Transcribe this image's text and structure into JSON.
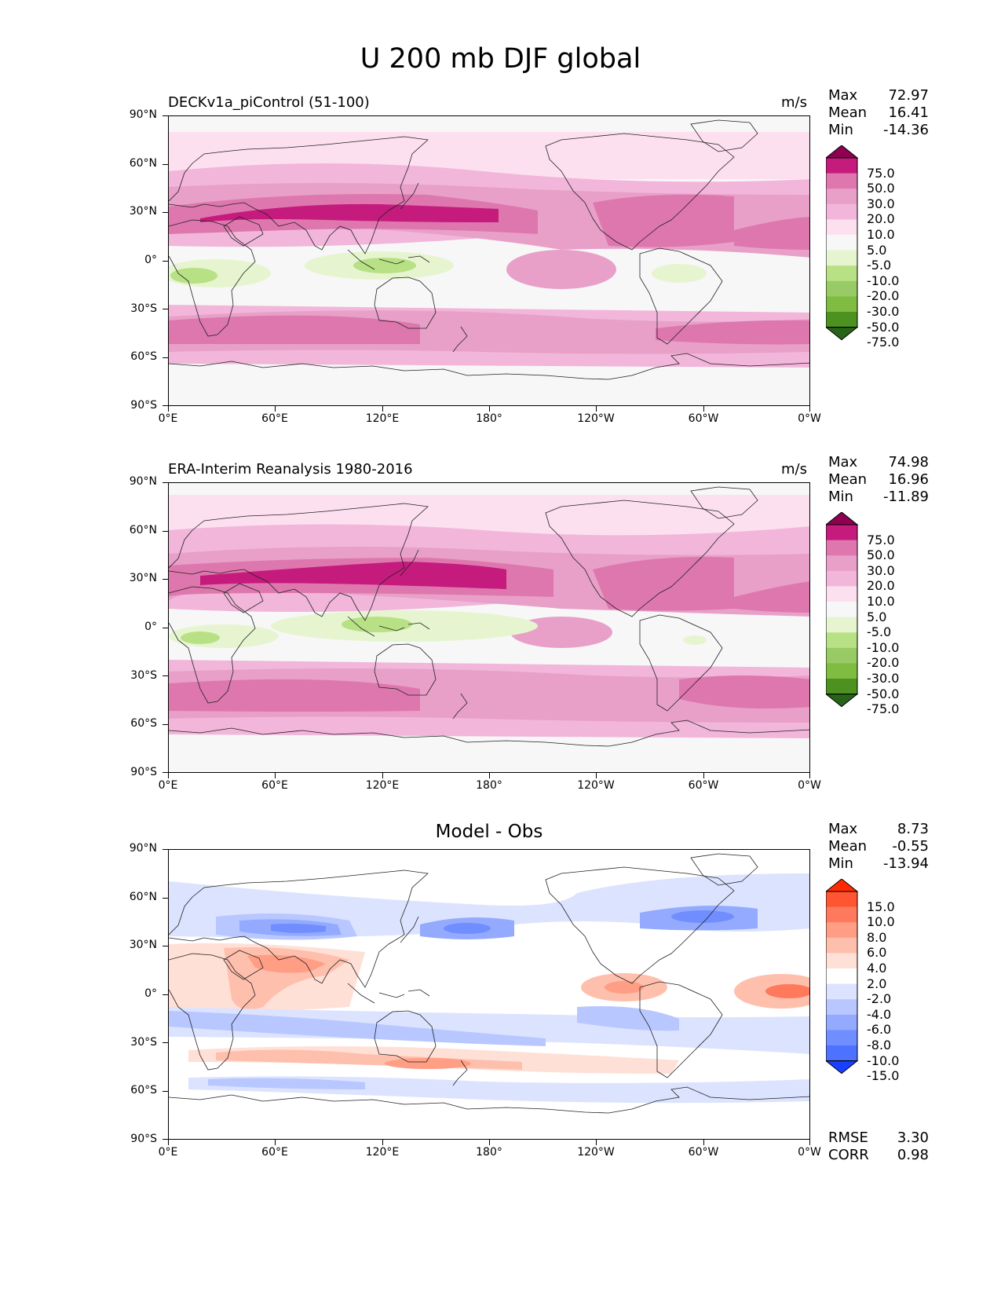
{
  "figure": {
    "title": "U 200 mb DJF global"
  },
  "axes": {
    "y_ticks": [
      "90°N",
      "60°N",
      "30°N",
      "0°",
      "30°S",
      "60°S",
      "90°S"
    ],
    "x_ticks": [
      "0°E",
      "60°E",
      "120°E",
      "180°",
      "120°W",
      "60°W",
      "0°W"
    ]
  },
  "panels": [
    {
      "title": "DECKv1a_piControl (51-100)",
      "units": "m/s",
      "stats": {
        "max_label": "Max",
        "max": "72.97",
        "mean_label": "Mean",
        "mean": "16.41",
        "min_label": "Min",
        "min": "-14.36"
      },
      "colorbar": {
        "labels": [
          "75.0",
          "50.0",
          "30.0",
          "20.0",
          "10.0",
          "5.0",
          "-5.0",
          "-10.0",
          "-20.0",
          "-30.0",
          "-50.0",
          "-75.0"
        ],
        "colors": [
          "#8e0152",
          "#c51b7d",
          "#de77ae",
          "#e8a0c8",
          "#f1b6da",
          "#fde0ef",
          "#f7f7f7",
          "#e6f5d0",
          "#b8e186",
          "#98cb65",
          "#7fbc41",
          "#4d9221",
          "#276419"
        ]
      }
    },
    {
      "title": "ERA-Interim Reanalysis 1980-2016",
      "units": "m/s",
      "stats": {
        "max_label": "Max",
        "max": "74.98",
        "mean_label": "Mean",
        "mean": "16.96",
        "min_label": "Min",
        "min": "-11.89"
      },
      "colorbar": {
        "labels": [
          "75.0",
          "50.0",
          "30.0",
          "20.0",
          "10.0",
          "5.0",
          "-5.0",
          "-10.0",
          "-20.0",
          "-30.0",
          "-50.0",
          "-75.0"
        ],
        "colors": [
          "#8e0152",
          "#c51b7d",
          "#de77ae",
          "#e8a0c8",
          "#f1b6da",
          "#fde0ef",
          "#f7f7f7",
          "#e6f5d0",
          "#b8e186",
          "#98cb65",
          "#7fbc41",
          "#4d9221",
          "#276419"
        ]
      }
    },
    {
      "title": "Model - Obs",
      "stats": {
        "max_label": "Max",
        "max": "8.73",
        "mean_label": "Mean",
        "mean": "-0.55",
        "min_label": "Min",
        "min": "-13.94"
      },
      "colorbar": {
        "labels": [
          "15.0",
          "10.0",
          "8.0",
          "6.0",
          "4.0",
          "2.0",
          "-2.0",
          "-4.0",
          "-6.0",
          "-8.0",
          "-10.0",
          "-15.0"
        ],
        "colors": [
          "#ff2a00",
          "#ff5533",
          "#ff7a5c",
          "#ff9e85",
          "#ffbfad",
          "#ffe0d6",
          "#ffffff",
          "#dbe3ff",
          "#b8c7ff",
          "#94aaff",
          "#708eff",
          "#4d72ff",
          "#1a40ff"
        ]
      },
      "metrics": {
        "rmse_label": "RMSE",
        "rmse": "3.30",
        "corr_label": "CORR",
        "corr": "0.98"
      }
    }
  ],
  "chart_data": {
    "type": "heatmap",
    "title": "U 200 mb DJF global",
    "xlim": [
      0,
      360
    ],
    "ylim": [
      -90,
      90
    ],
    "panels": [
      {
        "title": "DECKv1a_piControl (51-100)",
        "units": "m/s",
        "levels": [
          -75,
          -50,
          -30,
          -20,
          -10,
          -5,
          5,
          10,
          20,
          30,
          50,
          75
        ],
        "max": 72.97,
        "mean": 16.41,
        "min": -14.36,
        "features": [
          {
            "name": "NH subtropical jet Asia/W Pacific",
            "lon": 145,
            "lat": 32,
            "value": 70
          },
          {
            "name": "NH jet N America/Atlantic",
            "lon": 290,
            "lat": 35,
            "value": 45
          },
          {
            "name": "SH westerlies",
            "lon": 60,
            "lat": -47,
            "value": 35
          },
          {
            "name": "Tropical easterlies Maritime Continent",
            "lon": 120,
            "lat": 0,
            "value": -12
          }
        ]
      },
      {
        "title": "ERA-Interim Reanalysis 1980-2016",
        "units": "m/s",
        "levels": [
          -75,
          -50,
          -30,
          -20,
          -10,
          -5,
          5,
          10,
          20,
          30,
          50,
          75
        ],
        "max": 74.98,
        "mean": 16.96,
        "min": -11.89,
        "features": [
          {
            "name": "NH subtropical jet Asia/W Pacific",
            "lon": 140,
            "lat": 32,
            "value": 72
          },
          {
            "name": "NH jet N America/Atlantic",
            "lon": 290,
            "lat": 38,
            "value": 48
          },
          {
            "name": "SH westerlies",
            "lon": 60,
            "lat": -47,
            "value": 35
          },
          {
            "name": "Tropical easterlies Maritime Continent",
            "lon": 115,
            "lat": 0,
            "value": -11
          }
        ]
      },
      {
        "title": "Model - Obs",
        "levels": [
          -15,
          -10,
          -8,
          -6,
          -4,
          -2,
          2,
          4,
          6,
          8,
          10,
          15
        ],
        "max": 8.73,
        "mean": -0.55,
        "min": -13.94,
        "rmse": 3.3,
        "corr": 0.98,
        "features": [
          {
            "name": "negative bias Asian jet core",
            "lon": 75,
            "lat": 37,
            "value": -12
          },
          {
            "name": "negative bias N Pacific",
            "lon": 165,
            "lat": 38,
            "value": -10
          },
          {
            "name": "positive bias India",
            "lon": 60,
            "lat": 10,
            "value": 5
          },
          {
            "name": "positive bias S Pacific 45S",
            "lon": 165,
            "lat": -45,
            "value": 6
          }
        ]
      }
    ]
  }
}
